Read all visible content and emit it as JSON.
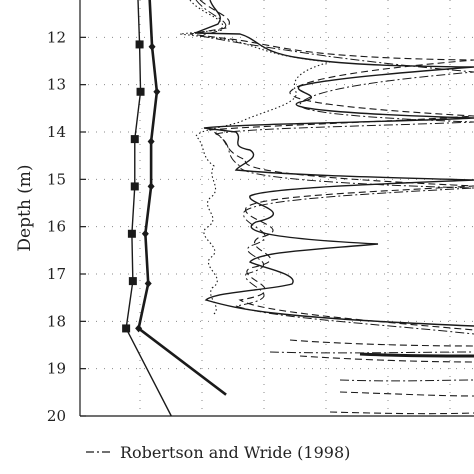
{
  "chart_data": {
    "type": "line",
    "ylabel": "Depth (m)",
    "ylim": [
      11,
      20
    ],
    "y_ticks": [
      "12",
      "13",
      "14",
      "15",
      "16",
      "17",
      "18",
      "19",
      "20"
    ],
    "y_inverted": true,
    "grid": "dotted",
    "legend": {
      "placement": "bottom",
      "visible_entries": [
        "Robertson and Wride (1998)"
      ]
    },
    "series": [
      {
        "marker": "square",
        "points": [
          [
            0.1,
            11.0
          ],
          [
            0.12,
            12.15
          ],
          [
            0.13,
            13.15
          ],
          [
            0.07,
            14.15
          ],
          [
            0.07,
            15.15
          ],
          [
            0.04,
            16.15
          ],
          [
            0.05,
            17.15
          ],
          [
            -0.02,
            18.15
          ],
          [
            0.45,
            20.0
          ]
        ]
      },
      {
        "marker": "diamond",
        "points": [
          [
            0.22,
            11.0
          ],
          [
            0.25,
            12.2
          ],
          [
            0.3,
            13.15
          ],
          [
            0.24,
            14.2
          ],
          [
            0.24,
            15.15
          ],
          [
            0.18,
            16.15
          ],
          [
            0.21,
            17.2
          ],
          [
            0.11,
            18.15
          ],
          [
            1.02,
            19.55
          ]
        ]
      }
    ]
  },
  "legend": {
    "entry": "Robertson and Wride (1998)"
  },
  "colors": {
    "line": "#1a1a1a",
    "grid": "#8a8a8a",
    "background": "#ffffff"
  }
}
